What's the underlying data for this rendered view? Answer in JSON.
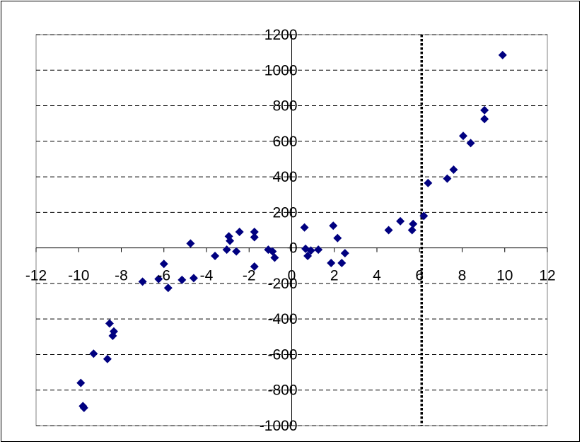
{
  "chart_data": {
    "type": "scatter",
    "title": "",
    "xlabel": "",
    "ylabel": "",
    "xlim": [
      -12,
      12
    ],
    "ylim": [
      -1000,
      1200
    ],
    "x_ticks": [
      -12,
      -10,
      -8,
      -6,
      -4,
      -2,
      0,
      2,
      4,
      6,
      8,
      10,
      12
    ],
    "y_ticks": [
      -1000,
      -800,
      -600,
      -400,
      -200,
      0,
      200,
      400,
      600,
      800,
      1000,
      1200
    ],
    "x_tick_labels": [
      "-12",
      "-10",
      "-8",
      "-6",
      "-4",
      "-2",
      "0",
      "2",
      "4",
      "6",
      "8",
      "10",
      "12"
    ],
    "y_tick_labels": [
      "-1000",
      "-800",
      "-600",
      "-400",
      "-200",
      "0",
      "200",
      "400",
      "600",
      "800",
      "1000",
      "1200"
    ],
    "grid": {
      "horizontal": true,
      "vertical": false,
      "style": "dashed"
    },
    "legend": "none",
    "reference_line": {
      "orientation": "vertical",
      "x": 6.1,
      "style": "dotted",
      "color": "#000000"
    },
    "marker": {
      "shape": "diamond",
      "color": "#000080"
    },
    "series": [
      {
        "points": [
          [
            -9.9,
            -760
          ],
          [
            -9.8,
            -890
          ],
          [
            -9.75,
            -900
          ],
          [
            -9.3,
            -595
          ],
          [
            -8.65,
            -625
          ],
          [
            -8.55,
            -425
          ],
          [
            -8.4,
            -495
          ],
          [
            -8.35,
            -470
          ],
          [
            -7.0,
            -190
          ],
          [
            -6.25,
            -175
          ],
          [
            -6.0,
            -90
          ],
          [
            -5.8,
            -225
          ],
          [
            -5.15,
            -180
          ],
          [
            -4.75,
            25
          ],
          [
            -4.6,
            -170
          ],
          [
            -3.6,
            -45
          ],
          [
            -3.05,
            -10
          ],
          [
            -2.95,
            65
          ],
          [
            -2.9,
            40
          ],
          [
            -2.6,
            -20
          ],
          [
            -2.45,
            90
          ],
          [
            -1.75,
            -105
          ],
          [
            -1.75,
            90
          ],
          [
            -1.75,
            60
          ],
          [
            -1.1,
            -10
          ],
          [
            -0.9,
            -20
          ],
          [
            -0.8,
            -55
          ],
          [
            0.6,
            115
          ],
          [
            0.65,
            -5
          ],
          [
            0.75,
            -45
          ],
          [
            0.9,
            -15
          ],
          [
            1.25,
            -10
          ],
          [
            1.85,
            -85
          ],
          [
            1.95,
            125
          ],
          [
            2.15,
            55
          ],
          [
            2.35,
            -85
          ],
          [
            2.5,
            -30
          ],
          [
            4.55,
            100
          ],
          [
            5.1,
            150
          ],
          [
            5.65,
            100
          ],
          [
            5.7,
            135
          ],
          [
            6.2,
            180
          ],
          [
            6.4,
            365
          ],
          [
            7.3,
            390
          ],
          [
            7.6,
            440
          ],
          [
            8.05,
            630
          ],
          [
            8.4,
            590
          ],
          [
            9.05,
            775
          ],
          [
            9.05,
            725
          ],
          [
            9.9,
            1085
          ]
        ]
      }
    ]
  }
}
